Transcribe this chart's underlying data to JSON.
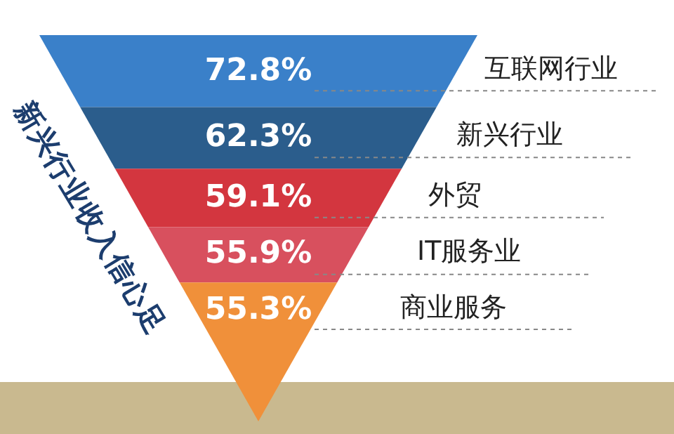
{
  "chart_data": {
    "type": "other",
    "title": "新兴行业收入信心足",
    "categories": [
      "互联网行业",
      "新兴行业",
      "外贸",
      "IT服务业",
      "商业服务"
    ],
    "values": [
      72.8,
      62.3,
      59.1,
      55.9,
      55.3
    ],
    "value_labels": [
      "72.8%",
      "62.3%",
      "59.1%",
      "55.9%",
      "55.3%"
    ],
    "colors": [
      "#3a80c9",
      "#2b5d8c",
      "#d3363f",
      "#d8505e",
      "#f0903a"
    ]
  }
}
